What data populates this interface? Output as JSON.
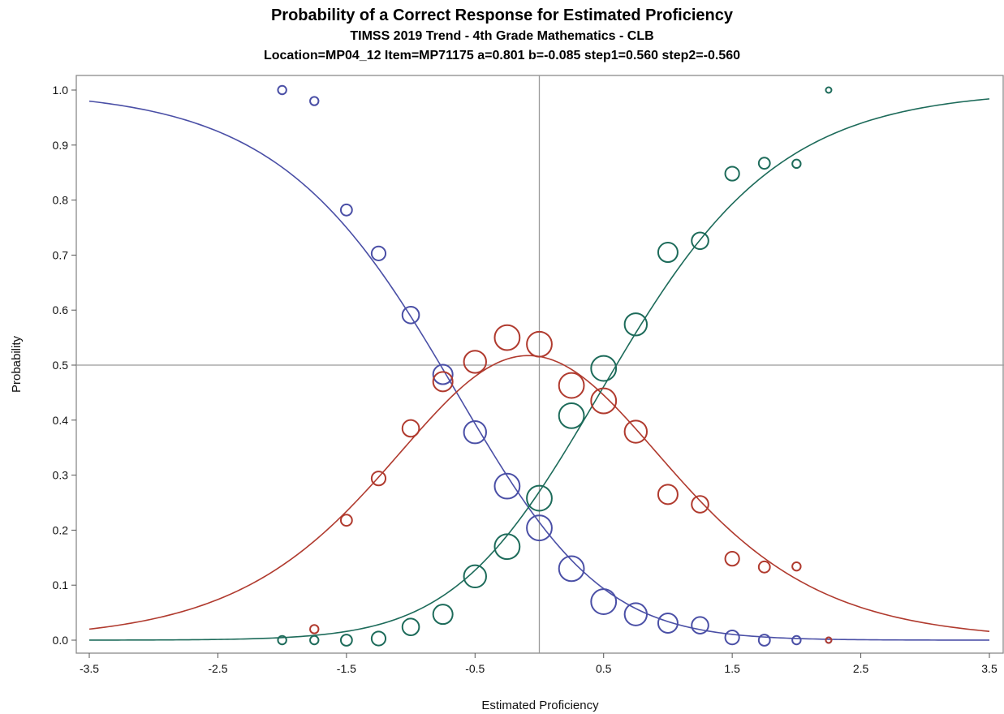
{
  "chart_data": {
    "type": "scatter",
    "title": "Probability of a Correct Response for Estimated Proficiency",
    "subtitle": "TIMSS 2019 Trend - 4th Grade Mathematics - CLB",
    "subtitle2": "Location=MP04_12 Item=MP71175 a=0.801 b=-0.085 step1=0.560 step2=-0.560",
    "xlabel": "Estimated Proficiency",
    "ylabel": "Probability",
    "xlim": [
      -3.5,
      3.5
    ],
    "ylim": [
      0,
      1
    ],
    "x_ticks": [
      "-3.5",
      "-2.5",
      "-1.5",
      "-0.5",
      "0.5",
      "1.5",
      "2.5",
      "3.5"
    ],
    "y_ticks": [
      "0.0",
      "0.1",
      "0.2",
      "0.3",
      "0.4",
      "0.5",
      "0.6",
      "0.7",
      "0.8",
      "0.9",
      "1.0"
    ],
    "reference_lines": {
      "x": 0,
      "y": 0.5
    },
    "grid": false,
    "legend": "none",
    "series": [
      {
        "color": "#4a4fa6",
        "curve": "category 0 (step response curve)",
        "points": [
          {
            "x": -2.0,
            "y": 1.0,
            "size": 1
          },
          {
            "x": -1.75,
            "y": 0.98,
            "size": 1
          },
          {
            "x": -1.5,
            "y": 0.782,
            "size": 2
          },
          {
            "x": -1.25,
            "y": 0.703,
            "size": 3
          },
          {
            "x": -1.0,
            "y": 0.591,
            "size": 4
          },
          {
            "x": -0.75,
            "y": 0.483,
            "size": 5
          },
          {
            "x": -0.5,
            "y": 0.378,
            "size": 6
          },
          {
            "x": -0.25,
            "y": 0.28,
            "size": 7
          },
          {
            "x": 0.0,
            "y": 0.204,
            "size": 7
          },
          {
            "x": 0.25,
            "y": 0.13,
            "size": 7
          },
          {
            "x": 0.5,
            "y": 0.07,
            "size": 7
          },
          {
            "x": 0.75,
            "y": 0.047,
            "size": 6
          },
          {
            "x": 1.0,
            "y": 0.031,
            "size": 5
          },
          {
            "x": 1.25,
            "y": 0.027,
            "size": 4
          },
          {
            "x": 1.5,
            "y": 0.005,
            "size": 3
          },
          {
            "x": 1.75,
            "y": 0.0,
            "size": 2
          },
          {
            "x": 2.0,
            "y": 0.0,
            "size": 1
          },
          {
            "x": 2.25,
            "y": 0.0,
            "size": 0
          }
        ]
      },
      {
        "color": "#b03a2e",
        "curve": "category 1 (step response curve)",
        "points": [
          {
            "x": -1.75,
            "y": 0.02,
            "size": 1
          },
          {
            "x": -1.5,
            "y": 0.218,
            "size": 2
          },
          {
            "x": -1.25,
            "y": 0.294,
            "size": 3
          },
          {
            "x": -1.0,
            "y": 0.385,
            "size": 4
          },
          {
            "x": -0.75,
            "y": 0.47,
            "size": 5
          },
          {
            "x": -0.5,
            "y": 0.506,
            "size": 6
          },
          {
            "x": -0.25,
            "y": 0.55,
            "size": 7
          },
          {
            "x": 0.0,
            "y": 0.538,
            "size": 7
          },
          {
            "x": 0.25,
            "y": 0.463,
            "size": 7
          },
          {
            "x": 0.5,
            "y": 0.435,
            "size": 7
          },
          {
            "x": 0.75,
            "y": 0.379,
            "size": 6
          },
          {
            "x": 1.0,
            "y": 0.265,
            "size": 5
          },
          {
            "x": 1.25,
            "y": 0.247,
            "size": 4
          },
          {
            "x": 1.5,
            "y": 0.148,
            "size": 3
          },
          {
            "x": 1.75,
            "y": 0.133,
            "size": 2
          },
          {
            "x": 2.0,
            "y": 0.134,
            "size": 1
          },
          {
            "x": 2.25,
            "y": 0.0,
            "size": 0
          }
        ]
      },
      {
        "color": "#1d6b5a",
        "curve": "category 2 (step response curve)",
        "points": [
          {
            "x": -2.0,
            "y": 0.0,
            "size": 1
          },
          {
            "x": -1.75,
            "y": 0.0,
            "size": 1
          },
          {
            "x": -1.5,
            "y": 0.0,
            "size": 2
          },
          {
            "x": -1.25,
            "y": 0.003,
            "size": 3
          },
          {
            "x": -1.0,
            "y": 0.024,
            "size": 4
          },
          {
            "x": -0.75,
            "y": 0.047,
            "size": 5
          },
          {
            "x": -0.5,
            "y": 0.116,
            "size": 6
          },
          {
            "x": -0.25,
            "y": 0.17,
            "size": 7
          },
          {
            "x": 0.0,
            "y": 0.258,
            "size": 7
          },
          {
            "x": 0.25,
            "y": 0.408,
            "size": 7
          },
          {
            "x": 0.5,
            "y": 0.494,
            "size": 7
          },
          {
            "x": 0.75,
            "y": 0.574,
            "size": 6
          },
          {
            "x": 1.0,
            "y": 0.705,
            "size": 5
          },
          {
            "x": 1.25,
            "y": 0.726,
            "size": 4
          },
          {
            "x": 1.5,
            "y": 0.848,
            "size": 3
          },
          {
            "x": 1.75,
            "y": 0.867,
            "size": 2
          },
          {
            "x": 2.0,
            "y": 0.866,
            "size": 1
          },
          {
            "x": 2.25,
            "y": 1.0,
            "size": 0
          }
        ]
      }
    ],
    "model": {
      "a": 0.801,
      "b": -0.085,
      "steps": [
        0.56,
        -0.56
      ]
    }
  }
}
